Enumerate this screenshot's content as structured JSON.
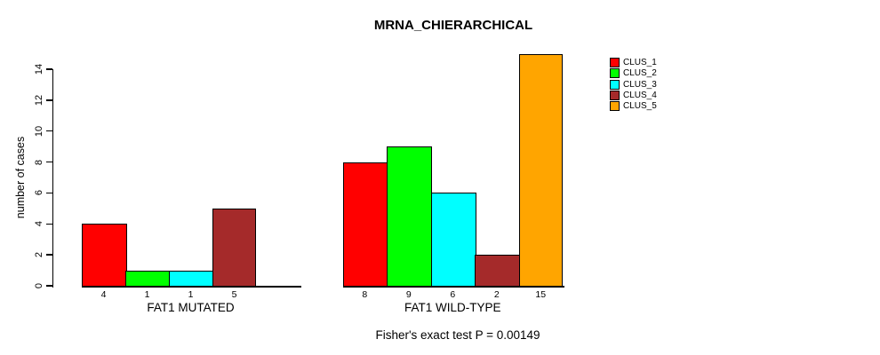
{
  "chart_data": {
    "type": "bar",
    "title": "MRNA_CHIERARCHICAL",
    "ylabel": "number of cases",
    "ylim": [
      0,
      15
    ],
    "yticks": [
      0,
      2,
      4,
      6,
      8,
      10,
      12,
      14
    ],
    "grid": false,
    "legend_position": "top-right",
    "categories": [
      "FAT1 MUTATED",
      "FAT1 WILD-TYPE"
    ],
    "series": [
      {
        "name": "CLUS_1",
        "color": "#FF0000",
        "values": [
          4,
          8
        ]
      },
      {
        "name": "CLUS_2",
        "color": "#00FF00",
        "values": [
          1,
          9
        ]
      },
      {
        "name": "CLUS_3",
        "color": "#00FFFF",
        "values": [
          1,
          6
        ]
      },
      {
        "name": "CLUS_4",
        "color": "#A52A2A",
        "values": [
          5,
          2
        ]
      },
      {
        "name": "CLUS_5",
        "color": "#FFA500",
        "values": [
          0,
          15
        ]
      }
    ],
    "bar_value_labels": [
      [
        "4",
        "1",
        "1",
        "5",
        ""
      ],
      [
        "8",
        "9",
        "6",
        "2",
        "15"
      ]
    ],
    "annotation": "Fisher's exact test P = 0.00149",
    "axis_color": "#000000",
    "background_color": "#FFFFFF"
  }
}
